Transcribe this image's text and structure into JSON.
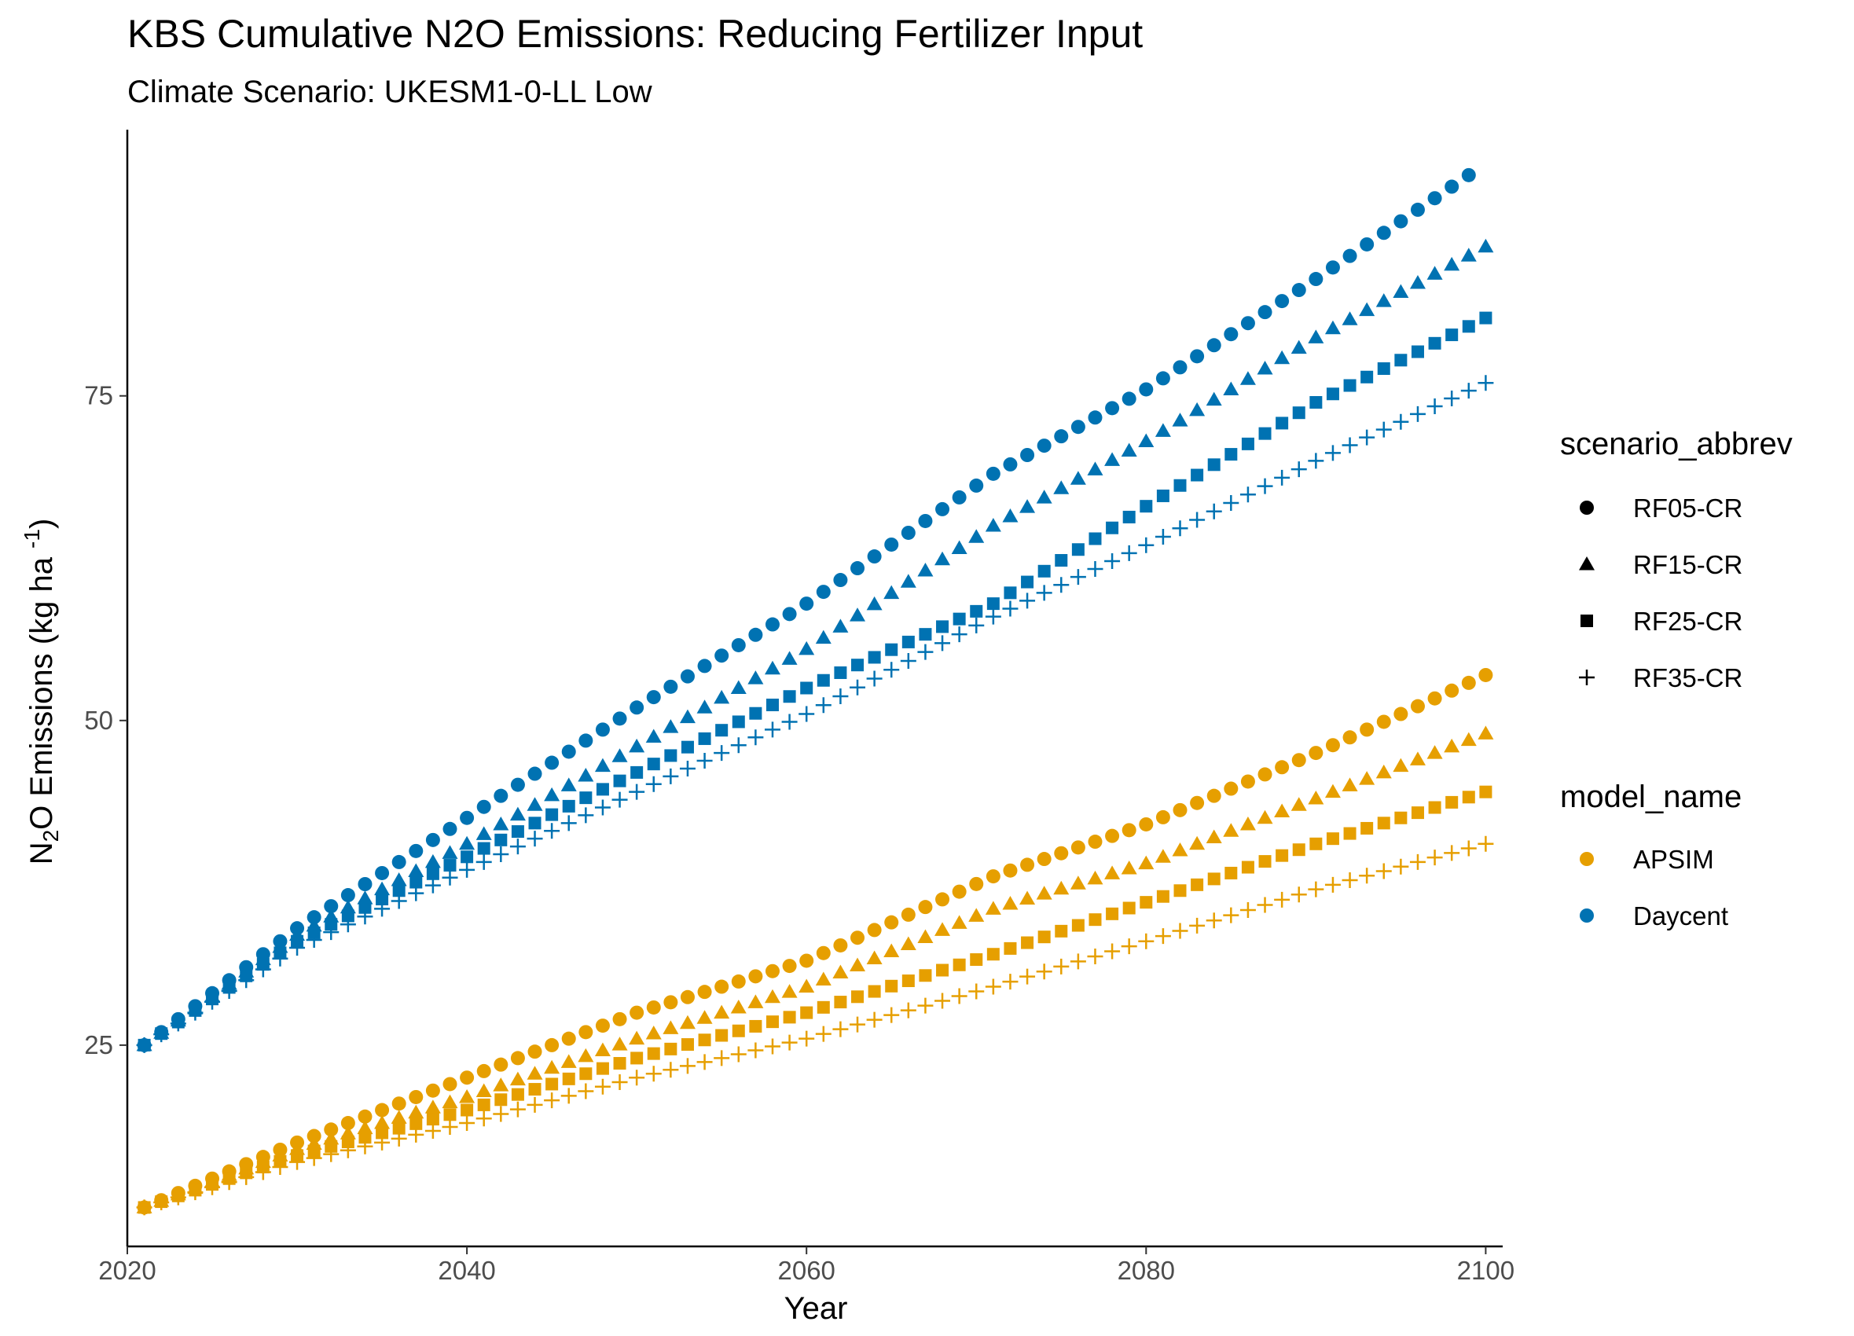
{
  "chart_data": {
    "type": "scatter",
    "title": "KBS  Cumulative N2O Emissions: Reducing Fertilizer Input",
    "subtitle": "Climate Scenario: UKESM1-0-LL Low",
    "xlabel": "Year",
    "ylabel": {
      "prefix": "N",
      "sub": "2",
      "mid": "O Emissions (kg ha ",
      "sup": "-1",
      "suffix": ")"
    },
    "xlim": [
      2020,
      2101
    ],
    "ylim": [
      9.5,
      95.5
    ],
    "xticks": [
      2020,
      2040,
      2060,
      2080,
      2100
    ],
    "yticks": [
      25,
      50,
      75
    ],
    "grid": false,
    "legend_position": "right",
    "legends": [
      {
        "title": "scenario_abbrev",
        "entries": [
          {
            "label": "RF05-CR",
            "shape": "circle"
          },
          {
            "label": "RF15-CR",
            "shape": "triangle"
          },
          {
            "label": "RF25-CR",
            "shape": "square"
          },
          {
            "label": "RF35-CR",
            "shape": "plus"
          }
        ]
      },
      {
        "title": "model_name",
        "entries": [
          {
            "label": "APSIM",
            "color": "#E69F00"
          },
          {
            "label": "Daycent",
            "color": "#0072B2"
          }
        ]
      }
    ],
    "years": {
      "start": 2021,
      "end": 2100
    },
    "series": [
      {
        "model": "Daycent",
        "scenario": "RF05-CR",
        "shape": "circle",
        "color": "#0072B2",
        "x": [
          2021,
          2030,
          2040,
          2050,
          2060,
          2071,
          2080,
          2090,
          2099
        ],
        "y": [
          25.0,
          34.0,
          42.5,
          51.0,
          59.0,
          69.0,
          75.5,
          84.0,
          92.0
        ]
      },
      {
        "model": "Daycent",
        "scenario": "RF15-CR",
        "shape": "triangle",
        "color": "#0072B2",
        "x": [
          2021,
          2030,
          2040,
          2050,
          2060,
          2071,
          2080,
          2090,
          2100
        ],
        "y": [
          25.0,
          33.5,
          40.5,
          48.0,
          55.5,
          65.0,
          71.5,
          79.5,
          86.5
        ]
      },
      {
        "model": "Daycent",
        "scenario": "RF25-CR",
        "shape": "square",
        "color": "#0072B2",
        "x": [
          2021,
          2030,
          2040,
          2050,
          2060,
          2071,
          2080,
          2090,
          2100
        ],
        "y": [
          25.0,
          33.0,
          39.5,
          46.0,
          52.5,
          59.0,
          66.5,
          74.5,
          81.0
        ]
      },
      {
        "model": "Daycent",
        "scenario": "RF35-CR",
        "shape": "plus",
        "color": "#0072B2",
        "x": [
          2021,
          2030,
          2040,
          2050,
          2060,
          2071,
          2080,
          2090,
          2100
        ],
        "y": [
          25.0,
          32.5,
          38.5,
          44.5,
          50.5,
          58.0,
          63.5,
          70.0,
          76.0
        ]
      },
      {
        "model": "APSIM",
        "scenario": "RF05-CR",
        "shape": "circle",
        "color": "#E69F00",
        "x": [
          2021,
          2030,
          2040,
          2050,
          2060,
          2071,
          2080,
          2090,
          2100
        ],
        "y": [
          12.5,
          17.5,
          22.5,
          27.5,
          31.5,
          38.0,
          42.0,
          47.5,
          53.5
        ]
      },
      {
        "model": "APSIM",
        "scenario": "RF15-CR",
        "shape": "triangle",
        "color": "#E69F00",
        "x": [
          2021,
          2030,
          2040,
          2050,
          2060,
          2071,
          2080,
          2090,
          2100
        ],
        "y": [
          12.5,
          17.0,
          21.0,
          25.5,
          29.5,
          35.5,
          39.0,
          44.0,
          49.0
        ]
      },
      {
        "model": "APSIM",
        "scenario": "RF25-CR",
        "shape": "square",
        "color": "#E69F00",
        "x": [
          2021,
          2030,
          2040,
          2050,
          2060,
          2071,
          2080,
          2090,
          2100
        ],
        "y": [
          12.5,
          16.5,
          20.0,
          24.0,
          27.5,
          32.0,
          36.0,
          40.5,
          44.5
        ]
      },
      {
        "model": "APSIM",
        "scenario": "RF35-CR",
        "shape": "plus",
        "color": "#E69F00",
        "x": [
          2021,
          2030,
          2040,
          2050,
          2060,
          2071,
          2080,
          2090,
          2100
        ],
        "y": [
          12.5,
          16.0,
          19.0,
          22.5,
          25.5,
          29.5,
          33.0,
          37.0,
          40.5
        ]
      }
    ]
  }
}
